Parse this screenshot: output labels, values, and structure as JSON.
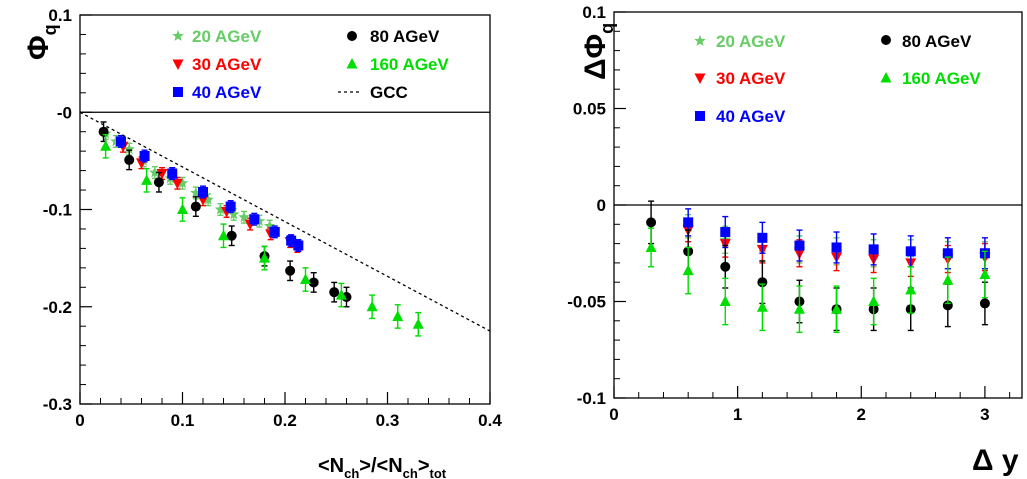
{
  "colors": {
    "s20": "#66cc66",
    "s30": "#ff0000",
    "s40": "#0000ff",
    "s80": "#000000",
    "s160": "#00dd00",
    "gcc": "#000000"
  },
  "chart_data": [
    {
      "type": "scatter",
      "title": "",
      "xlabel_parts": [
        "<N",
        "ch",
        ">/<N",
        "ch",
        ">",
        "tot"
      ],
      "ylabel_parts": [
        "Φ",
        "q"
      ],
      "xlim": [
        0,
        0.4
      ],
      "ylim": [
        -0.3,
        0.1
      ],
      "xticks": [
        0,
        0.1,
        0.2,
        0.3,
        0.4
      ],
      "xtick_labels": [
        "0",
        "0.1",
        "0.2",
        "0.3",
        "0.4"
      ],
      "yticks": [
        0.1,
        0,
        -0.1,
        -0.2,
        -0.3
      ],
      "ytick_labels": [
        "0.1",
        "-0",
        "-0.1",
        "-0.2",
        "-0.3"
      ],
      "zero_line": true,
      "legend_position": "top",
      "series": [
        {
          "name": "20 AGeV",
          "key": "s20",
          "marker": "star",
          "x": [
            0.025,
            0.035,
            0.048,
            0.062,
            0.073,
            0.088,
            0.1,
            0.113,
            0.125,
            0.137,
            0.15,
            0.16,
            0.175,
            0.185
          ],
          "y": [
            -0.022,
            -0.03,
            -0.038,
            -0.05,
            -0.062,
            -0.068,
            -0.073,
            -0.083,
            -0.09,
            -0.1,
            -0.105,
            -0.108,
            -0.112,
            -0.117
          ],
          "err": [
            0.006,
            0.006,
            0.006,
            0.006,
            0.006,
            0.006,
            0.006,
            0.006,
            0.006,
            0.006,
            0.006,
            0.006,
            0.006,
            0.006
          ]
        },
        {
          "name": "30 AGeV",
          "key": "s30",
          "marker": "tridown",
          "x": [
            0.042,
            0.06,
            0.08,
            0.095,
            0.12,
            0.143,
            0.166,
            0.186,
            0.205,
            0.212
          ],
          "y": [
            -0.035,
            -0.052,
            -0.063,
            -0.073,
            -0.09,
            -0.102,
            -0.115,
            -0.125,
            -0.133,
            -0.138
          ],
          "err": [
            0.006,
            0.006,
            0.006,
            0.006,
            0.006,
            0.006,
            0.006,
            0.006,
            0.006,
            0.006
          ]
        },
        {
          "name": "40 AGeV",
          "key": "s40",
          "marker": "square",
          "x": [
            0.04,
            0.063,
            0.09,
            0.12,
            0.147,
            0.17,
            0.19,
            0.206,
            0.213
          ],
          "y": [
            -0.03,
            -0.045,
            -0.063,
            -0.082,
            -0.097,
            -0.11,
            -0.123,
            -0.132,
            -0.137
          ],
          "err": [
            0.006,
            0.006,
            0.006,
            0.006,
            0.006,
            0.006,
            0.006,
            0.006,
            0.006
          ]
        },
        {
          "name": "80 AGeV",
          "key": "s80",
          "marker": "circle",
          "x": [
            0.023,
            0.048,
            0.077,
            0.113,
            0.148,
            0.18,
            0.205,
            0.228,
            0.248,
            0.26
          ],
          "y": [
            -0.02,
            -0.049,
            -0.072,
            -0.097,
            -0.127,
            -0.148,
            -0.163,
            -0.175,
            -0.185,
            -0.19
          ],
          "err": [
            0.01,
            0.01,
            0.01,
            0.01,
            0.01,
            0.01,
            0.01,
            0.01,
            0.01,
            0.01
          ]
        },
        {
          "name": "160 AGeV",
          "key": "s160",
          "marker": "triup",
          "x": [
            0.025,
            0.065,
            0.1,
            0.14,
            0.18,
            0.22,
            0.255,
            0.285,
            0.31,
            0.33
          ],
          "y": [
            -0.035,
            -0.07,
            -0.1,
            -0.127,
            -0.15,
            -0.172,
            -0.188,
            -0.2,
            -0.21,
            -0.218
          ],
          "err": [
            0.012,
            0.012,
            0.012,
            0.012,
            0.012,
            0.012,
            0.012,
            0.012,
            0.012,
            0.012
          ]
        },
        {
          "name": "GCC",
          "key": "gcc",
          "marker": "dashed-line",
          "x": [
            0,
            0.4
          ],
          "y": [
            0,
            -0.225
          ]
        }
      ]
    },
    {
      "type": "scatter",
      "title": "",
      "xlabel": "Δ y",
      "ylabel_parts": [
        "ΔΦ",
        "q"
      ],
      "xlim": [
        0,
        3.3
      ],
      "ylim": [
        -0.1,
        0.1
      ],
      "xticks": [
        0,
        1,
        2,
        3
      ],
      "xtick_labels": [
        "0",
        "1",
        "2",
        "3"
      ],
      "yticks": [
        0.1,
        0.05,
        0,
        -0.05,
        -0.1
      ],
      "ytick_labels": [
        "0.1",
        "0.05",
        "0",
        "-0.05",
        "-0.1"
      ],
      "zero_line": true,
      "legend_position": "top",
      "series": [
        {
          "name": "20 AGeV",
          "key": "s20",
          "marker": "star",
          "x": [
            0.6,
            0.9,
            1.2,
            1.5,
            1.8,
            2.1,
            2.4,
            2.7,
            3.0
          ],
          "y": [
            -0.011,
            -0.018,
            -0.022,
            -0.023,
            -0.024,
            -0.025,
            -0.025,
            -0.026,
            -0.026
          ],
          "err": [
            0.006,
            0.007,
            0.007,
            0.007,
            0.007,
            0.007,
            0.007,
            0.007,
            0.007
          ]
        },
        {
          "name": "30 AGeV",
          "key": "s30",
          "marker": "tridown",
          "x": [
            0.6,
            0.9,
            1.2,
            1.5,
            1.8,
            2.1,
            2.4,
            2.7,
            3.0
          ],
          "y": [
            -0.013,
            -0.02,
            -0.023,
            -0.025,
            -0.027,
            -0.028,
            -0.03,
            -0.028,
            -0.027
          ],
          "err": [
            0.006,
            0.007,
            0.007,
            0.007,
            0.007,
            0.007,
            0.007,
            0.007,
            0.007
          ]
        },
        {
          "name": "40 AGeV",
          "key": "s40",
          "marker": "square",
          "x": [
            0.6,
            0.9,
            1.2,
            1.5,
            1.8,
            2.1,
            2.4,
            2.7,
            3.0
          ],
          "y": [
            -0.009,
            -0.014,
            -0.017,
            -0.021,
            -0.022,
            -0.023,
            -0.024,
            -0.025,
            -0.025
          ],
          "err": [
            0.007,
            0.008,
            0.008,
            0.008,
            0.008,
            0.008,
            0.008,
            0.008,
            0.008
          ]
        },
        {
          "name": "80 AGeV",
          "key": "s80",
          "marker": "circle",
          "x": [
            0.3,
            0.6,
            0.9,
            1.2,
            1.5,
            1.8,
            2.1,
            2.4,
            2.7,
            3.0
          ],
          "y": [
            -0.009,
            -0.024,
            -0.032,
            -0.04,
            -0.05,
            -0.054,
            -0.054,
            -0.054,
            -0.052,
            -0.051
          ],
          "err": [
            0.011,
            0.011,
            0.011,
            0.011,
            0.011,
            0.011,
            0.011,
            0.011,
            0.011,
            0.011
          ]
        },
        {
          "name": "160 AGeV",
          "key": "s160",
          "marker": "triup",
          "x": [
            0.3,
            0.6,
            0.9,
            1.2,
            1.5,
            1.8,
            2.1,
            2.4,
            2.7,
            3.0
          ],
          "y": [
            -0.022,
            -0.034,
            -0.05,
            -0.053,
            -0.054,
            -0.054,
            -0.05,
            -0.044,
            -0.039,
            -0.036
          ],
          "err": [
            0.01,
            0.012,
            0.012,
            0.012,
            0.012,
            0.012,
            0.012,
            0.012,
            0.012,
            0.012
          ]
        }
      ]
    }
  ]
}
